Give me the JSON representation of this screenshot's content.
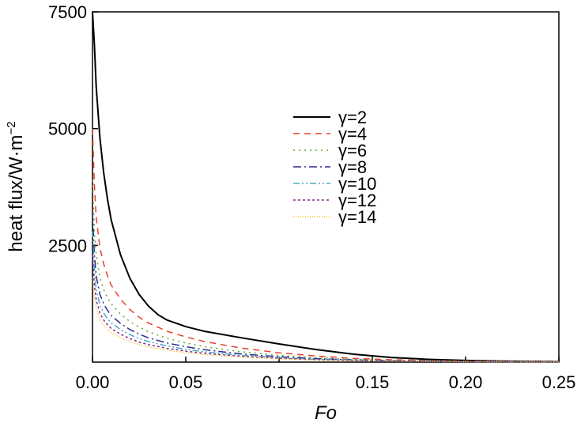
{
  "chart_data": {
    "type": "line",
    "xlabel": "Fo",
    "ylabel": "heat flux/W·m",
    "ylabel_sup": "−2",
    "xlim": [
      0,
      0.25
    ],
    "ylim": [
      0,
      7500
    ],
    "x_ticks": [
      0.0,
      0.05,
      0.1,
      0.15,
      0.2,
      0.25
    ],
    "x_tick_labels": [
      "0.00",
      "0.05",
      "0.10",
      "0.15",
      "0.20",
      "0.25"
    ],
    "y_ticks": [
      2500,
      5000,
      7500
    ],
    "y_tick_labels": [
      "2500",
      "5000",
      "7500"
    ],
    "legend_position": "center",
    "series": [
      {
        "name": "γ=2",
        "color": "#000000",
        "dash": "none",
        "x": [
          0,
          0.001,
          0.002,
          0.004,
          0.006,
          0.008,
          0.01,
          0.015,
          0.02,
          0.025,
          0.03,
          0.035,
          0.04,
          0.05,
          0.06,
          0.08,
          0.1,
          0.12,
          0.14,
          0.16,
          0.18,
          0.2,
          0.22,
          0.25
        ],
        "values": [
          7500,
          6800,
          5900,
          4800,
          4050,
          3500,
          3050,
          2300,
          1800,
          1450,
          1200,
          1020,
          900,
          760,
          660,
          520,
          390,
          270,
          170,
          100,
          60,
          35,
          20,
          10
        ]
      },
      {
        "name": "γ=4",
        "color": "#e8402a",
        "dash": "8,6",
        "x": [
          0,
          0.001,
          0.002,
          0.004,
          0.006,
          0.008,
          0.01,
          0.015,
          0.02,
          0.025,
          0.03,
          0.04,
          0.05,
          0.06,
          0.08,
          0.1,
          0.12,
          0.14,
          0.16,
          0.2,
          0.25
        ],
        "values": [
          5000,
          3800,
          3100,
          2450,
          2100,
          1850,
          1650,
          1350,
          1130,
          960,
          840,
          660,
          540,
          440,
          300,
          200,
          130,
          80,
          50,
          20,
          8
        ]
      },
      {
        "name": "γ=6",
        "color": "#5aa832",
        "dash": "2,5",
        "x": [
          0,
          0.001,
          0.002,
          0.004,
          0.006,
          0.008,
          0.01,
          0.015,
          0.02,
          0.025,
          0.03,
          0.04,
          0.05,
          0.06,
          0.08,
          0.1,
          0.12,
          0.14,
          0.16,
          0.2,
          0.25
        ],
        "values": [
          3900,
          2800,
          2300,
          1800,
          1550,
          1380,
          1250,
          1030,
          870,
          750,
          650,
          510,
          410,
          330,
          220,
          145,
          95,
          60,
          38,
          15,
          6
        ]
      },
      {
        "name": "γ=8",
        "color": "#2a2a8a",
        "dash": "10,4,2,4",
        "x": [
          0,
          0.001,
          0.002,
          0.004,
          0.006,
          0.008,
          0.01,
          0.015,
          0.02,
          0.025,
          0.03,
          0.04,
          0.05,
          0.06,
          0.08,
          0.1,
          0.12,
          0.14,
          0.16,
          0.2,
          0.25
        ],
        "values": [
          3200,
          2300,
          1850,
          1450,
          1250,
          1110,
          1000,
          830,
          700,
          600,
          520,
          410,
          330,
          265,
          175,
          115,
          75,
          48,
          30,
          12,
          5
        ]
      },
      {
        "name": "γ=10",
        "color": "#4aa8c8",
        "dash": "8,3,2,3,2,3",
        "x": [
          0,
          0.001,
          0.002,
          0.004,
          0.006,
          0.008,
          0.01,
          0.015,
          0.02,
          0.025,
          0.03,
          0.04,
          0.05,
          0.06,
          0.08,
          0.1,
          0.12,
          0.14,
          0.16,
          0.2,
          0.25
        ],
        "values": [
          2800,
          1950,
          1550,
          1220,
          1050,
          930,
          840,
          700,
          590,
          505,
          440,
          345,
          275,
          220,
          145,
          95,
          62,
          40,
          25,
          10,
          4
        ]
      },
      {
        "name": "γ=12",
        "color": "#8a2a8a",
        "dash": "3,3",
        "x": [
          0,
          0.001,
          0.002,
          0.004,
          0.006,
          0.008,
          0.01,
          0.015,
          0.02,
          0.025,
          0.03,
          0.04,
          0.05,
          0.06,
          0.08,
          0.1,
          0.12,
          0.14,
          0.16,
          0.2,
          0.25
        ],
        "values": [
          2300,
          1650,
          1330,
          1050,
          900,
          800,
          720,
          600,
          505,
          430,
          375,
          295,
          235,
          188,
          124,
          82,
          53,
          34,
          22,
          9,
          3
        ]
      },
      {
        "name": "γ=14",
        "color": "#f0c020",
        "dash": "1,2",
        "x": [
          0,
          0.001,
          0.002,
          0.004,
          0.006,
          0.008,
          0.01,
          0.015,
          0.02,
          0.025,
          0.03,
          0.04,
          0.05,
          0.06,
          0.08,
          0.1,
          0.12,
          0.14,
          0.16,
          0.2,
          0.25
        ],
        "values": [
          1800,
          1400,
          1150,
          920,
          790,
          700,
          630,
          525,
          440,
          375,
          325,
          255,
          205,
          163,
          107,
          70,
          46,
          30,
          19,
          8,
          3
        ]
      }
    ]
  }
}
